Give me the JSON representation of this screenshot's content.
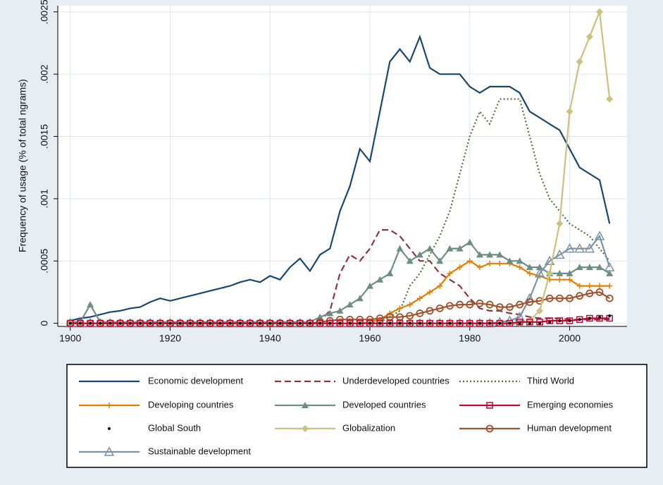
{
  "chart_data": {
    "type": "line",
    "y_label": "Frequency of usage (% of total ngrams)",
    "x": [
      1900,
      1902,
      1904,
      1906,
      1908,
      1910,
      1912,
      1914,
      1916,
      1918,
      1920,
      1922,
      1924,
      1926,
      1928,
      1930,
      1932,
      1934,
      1936,
      1938,
      1940,
      1942,
      1944,
      1946,
      1948,
      1950,
      1952,
      1954,
      1956,
      1958,
      1960,
      1962,
      1964,
      1966,
      1968,
      1970,
      1972,
      1974,
      1976,
      1978,
      1980,
      1982,
      1984,
      1986,
      1988,
      1990,
      1992,
      1994,
      1996,
      1998,
      2000,
      2002,
      2004,
      2006,
      2008
    ],
    "xlim": [
      1897.5,
      2011.5
    ],
    "xticks": [
      1900,
      1920,
      1940,
      1960,
      1980,
      2000
    ],
    "ylim": [
      -2.5e-05,
      0.00255
    ],
    "yticks": [
      0,
      {
        "value": 0.0005,
        "label": ".0005"
      },
      {
        "value": 0.001,
        "label": ".001"
      },
      {
        "value": 0.0015,
        "label": ".0015"
      },
      {
        "value": 0.002,
        "label": ".002"
      },
      {
        "value": 0.0025,
        "label": ".0025"
      }
    ],
    "grid": true,
    "series": [
      {
        "name": "Economic development",
        "color": "#1a476f",
        "style": "solid",
        "marker": "none",
        "values": [
          2e-05,
          4e-05,
          5e-05,
          7e-05,
          9e-05,
          0.0001,
          0.00012,
          0.00013,
          0.00017,
          0.0002,
          0.00018,
          0.0002,
          0.00022,
          0.00024,
          0.00026,
          0.00028,
          0.0003,
          0.00033,
          0.00035,
          0.00033,
          0.00038,
          0.00035,
          0.00045,
          0.00052,
          0.00042,
          0.00055,
          0.0006,
          0.0009,
          0.0011,
          0.0014,
          0.0013,
          0.0017,
          0.0021,
          0.0022,
          0.0021,
          0.0023,
          0.00205,
          0.002,
          0.002,
          0.002,
          0.0019,
          0.00185,
          0.0019,
          0.0019,
          0.0019,
          0.00185,
          0.0017,
          0.00165,
          0.0016,
          0.00155,
          0.0014,
          0.00125,
          0.0012,
          0.00115,
          0.0008
        ]
      },
      {
        "name": "Underdeveloped countries",
        "color": "#90353b",
        "style": "dash",
        "marker": "none",
        "values": [
          0,
          0,
          0,
          0,
          0,
          0,
          0,
          0,
          0,
          0,
          0,
          0,
          0,
          0,
          0,
          0,
          0,
          0,
          0,
          0,
          0,
          0,
          0,
          0,
          0,
          2e-05,
          0.0001,
          0.0004,
          0.00055,
          0.0005,
          0.0006,
          0.00075,
          0.00075,
          0.0007,
          0.0006,
          0.0005,
          0.0005,
          0.0004,
          0.00035,
          0.0003,
          0.0002,
          0.00012,
          0.0001,
          0.0001,
          8e-05,
          7e-05,
          5e-05,
          4e-05,
          4e-05,
          4e-05,
          3e-05,
          3e-05,
          3e-05,
          3e-05,
          3e-05
        ]
      },
      {
        "name": "Third World",
        "color": "#55752f",
        "style": "dot",
        "marker": "none",
        "values": [
          0,
          0,
          0,
          0,
          0,
          0,
          0,
          0,
          0,
          0,
          0,
          0,
          0,
          0,
          0,
          0,
          0,
          0,
          0,
          0,
          0,
          0,
          0,
          0,
          0,
          0,
          0,
          0,
          0,
          0,
          0,
          1e-05,
          5e-05,
          0.0001,
          0.0003,
          0.0004,
          0.00055,
          0.0007,
          0.0009,
          0.0012,
          0.0015,
          0.0017,
          0.0016,
          0.0018,
          0.0018,
          0.0018,
          0.0015,
          0.0012,
          0.001,
          0.0009,
          0.0008,
          0.00075,
          0.0007,
          0.0006,
          0.0005
        ]
      },
      {
        "name": "Developing countries",
        "color": "#e37e00",
        "style": "solid",
        "marker": "plus",
        "values": [
          0,
          0,
          0,
          0,
          0,
          0,
          0,
          0,
          0,
          0,
          0,
          0,
          0,
          0,
          0,
          0,
          0,
          0,
          0,
          0,
          0,
          0,
          0,
          0,
          0,
          0,
          0,
          0,
          0,
          0,
          1e-05,
          3e-05,
          8e-05,
          0.00012,
          0.00015,
          0.0002,
          0.00025,
          0.0003,
          0.0004,
          0.00045,
          0.0005,
          0.00045,
          0.00048,
          0.00048,
          0.00048,
          0.00045,
          0.0004,
          0.00038,
          0.00035,
          0.00035,
          0.00035,
          0.0003,
          0.0003,
          0.0003,
          0.0003
        ]
      },
      {
        "name": "Developed countries",
        "color": "#6e8e84",
        "style": "solid",
        "marker": "triangle",
        "values": [
          1e-05,
          1e-05,
          0.00015,
          1e-05,
          1e-05,
          1e-05,
          1e-05,
          1e-05,
          1e-05,
          1e-05,
          1e-05,
          1e-05,
          1e-05,
          1e-05,
          1e-05,
          1e-05,
          1e-05,
          1e-05,
          1e-05,
          1e-05,
          1e-05,
          1e-05,
          1e-05,
          1e-05,
          1e-05,
          5e-05,
          8e-05,
          0.0001,
          0.00015,
          0.0002,
          0.0003,
          0.00035,
          0.0004,
          0.0006,
          0.0005,
          0.00055,
          0.0006,
          0.0005,
          0.0006,
          0.0006,
          0.00065,
          0.00055,
          0.00055,
          0.00055,
          0.0005,
          0.0005,
          0.00045,
          0.00045,
          0.0004,
          0.0004,
          0.0004,
          0.00045,
          0.00045,
          0.00045,
          0.0004
        ]
      },
      {
        "name": "Emerging economies",
        "color": "#c10534",
        "style": "solid",
        "marker": "square-hollow",
        "values": [
          0,
          0,
          0,
          0,
          0,
          0,
          0,
          0,
          0,
          0,
          0,
          0,
          0,
          0,
          0,
          0,
          0,
          0,
          0,
          0,
          0,
          0,
          0,
          0,
          0,
          0,
          0,
          0,
          0,
          0,
          0,
          0,
          0,
          0,
          0,
          0,
          0,
          0,
          0,
          0,
          0,
          0,
          0,
          0,
          0,
          1e-05,
          1e-05,
          1e-05,
          2e-05,
          2e-05,
          2e-05,
          3e-05,
          4e-05,
          4e-05,
          4e-05
        ]
      },
      {
        "name": "Global South",
        "color": "#000000",
        "style": "none",
        "marker": "dot",
        "values": [
          0,
          0,
          0,
          0,
          0,
          0,
          0,
          0,
          0,
          0,
          0,
          0,
          0,
          0,
          0,
          0,
          0,
          0,
          0,
          0,
          0,
          0,
          0,
          0,
          0,
          0,
          0,
          0,
          0,
          0,
          0,
          0,
          0,
          0,
          0,
          0,
          0,
          0,
          0,
          0,
          0,
          0,
          0,
          0,
          0,
          0,
          0,
          0,
          1e-05,
          2e-05,
          2e-05,
          3e-05,
          4e-05,
          5e-05,
          6e-05
        ]
      },
      {
        "name": "Globalization",
        "color": "#cac27e",
        "style": "solid",
        "marker": "diamond",
        "values": [
          0,
          0,
          0,
          0,
          0,
          0,
          0,
          0,
          0,
          0,
          0,
          0,
          0,
          0,
          0,
          0,
          0,
          0,
          0,
          0,
          0,
          0,
          0,
          0,
          0,
          0,
          0,
          0,
          0,
          0,
          0,
          0,
          0,
          0,
          0,
          0,
          0,
          0,
          0,
          0,
          0,
          0,
          0,
          0,
          0,
          0,
          2e-05,
          0.0001,
          0.0004,
          0.0008,
          0.0017,
          0.0021,
          0.0023,
          0.0025,
          0.0018
        ]
      },
      {
        "name": "Human development",
        "color": "#a0522d",
        "style": "solid",
        "marker": "circle-hollow",
        "values": [
          0,
          0,
          0,
          0,
          0,
          0,
          0,
          0,
          0,
          0,
          0,
          0,
          0,
          0,
          0,
          0,
          0,
          0,
          0,
          0,
          0,
          0,
          0,
          0,
          0,
          1e-05,
          2e-05,
          3e-05,
          3e-05,
          3e-05,
          3e-05,
          4e-05,
          5e-05,
          5e-05,
          6e-05,
          8e-05,
          0.0001,
          0.00012,
          0.00014,
          0.00015,
          0.00015,
          0.00016,
          0.00015,
          0.00013,
          0.00013,
          0.00015,
          0.00017,
          0.00018,
          0.0002,
          0.0002,
          0.0002,
          0.00022,
          0.00024,
          0.00025,
          0.0002
        ]
      },
      {
        "name": "Sustainable development",
        "color": "#7b92a8",
        "style": "solid",
        "marker": "triangle-hollow",
        "values": [
          0,
          0,
          0,
          0,
          0,
          0,
          0,
          0,
          0,
          0,
          0,
          0,
          0,
          0,
          0,
          0,
          0,
          0,
          0,
          0,
          0,
          0,
          0,
          0,
          0,
          0,
          0,
          0,
          0,
          0,
          0,
          0,
          0,
          0,
          0,
          0,
          0,
          0,
          0,
          0,
          0,
          0,
          0,
          1e-05,
          2e-05,
          5e-05,
          0.0002,
          0.0004,
          0.0005,
          0.00055,
          0.0006,
          0.0006,
          0.0006,
          0.0007,
          0.00045
        ]
      }
    ]
  }
}
